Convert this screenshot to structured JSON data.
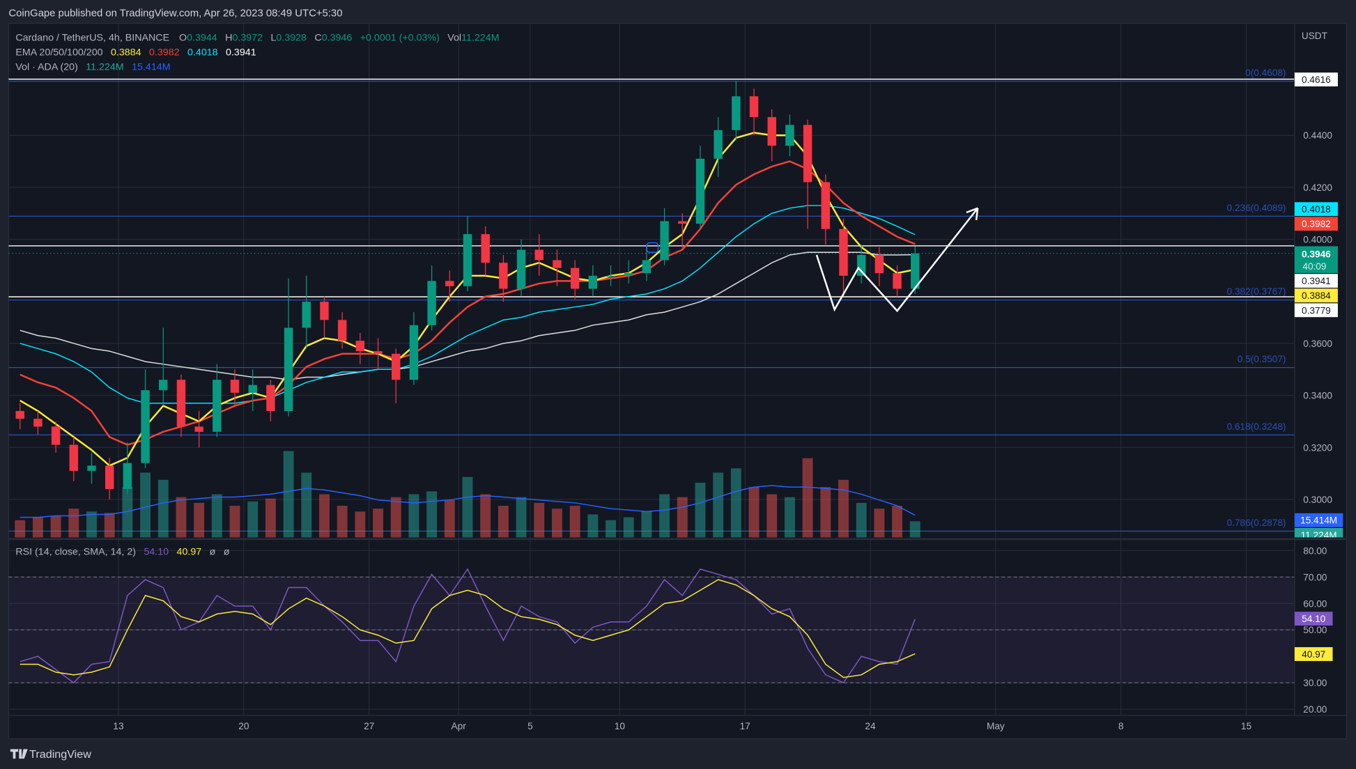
{
  "header": {
    "published": "CoinGape published on TradingView.com, Apr 26, 2023 08:49 UTC+5:30"
  },
  "legend": {
    "symbol": "Cardano / TetherUS, 4h, BINANCE",
    "o_label": "O",
    "o": "0.3944",
    "h_label": "H",
    "h": "0.3972",
    "l_label": "L",
    "l": "0.3928",
    "c_label": "C",
    "c": "0.3946",
    "change": "+0.0001 (+0.03%)",
    "vol_label": "Vol",
    "vol": "11.224M",
    "ema_label": "EMA 20/50/100/200",
    "ema20": "0.3884",
    "ema50": "0.3982",
    "ema100": "0.4018",
    "ema200": "0.3941",
    "vol_ind_label": "Vol · ADA (20)",
    "vol_ind_vol": "11.224M",
    "vol_ind_ma": "15.414M",
    "rsi_label": "RSI (14, close, SMA, 14, 2)",
    "rsi": "54.10",
    "rsi_sma": "40.97",
    "na1": "ø",
    "na2": "ø"
  },
  "price_axis": {
    "currency": "USDT",
    "badges": {
      "high_line": "0.4616",
      "ema100": "0.4018",
      "ema50": "0.3982",
      "last": "0.3946",
      "countdown": "40:09",
      "ema200": "0.3941",
      "ema20": "0.3884",
      "low_line": "0.3779",
      "vol_ma": "15.414M",
      "vol": "11.224M",
      "rsi": "54.10",
      "rsi_sma": "40.97"
    }
  },
  "colors": {
    "up": "#089981",
    "down": "#f23645",
    "ema20": "#ffeb3b",
    "ema50": "#f44336",
    "ema100": "#00e5ff",
    "ema200": "#e0e0e0",
    "fib": "#2c4fb4",
    "vol_ma": "#2962ff",
    "rsi": "#7e57c2",
    "rsi_sma": "#ffeb3b",
    "background": "#131722"
  },
  "branding": {
    "logo": "TradingView"
  },
  "chart_data": {
    "type": "candlestick",
    "title": "Cardano / TetherUS, 4h, BINANCE",
    "ylabel": "USDT",
    "ylim": [
      0.28,
      0.47
    ],
    "grid": true,
    "y_ticks": [
      "0.4400",
      "0.4200",
      "0.4000",
      "0.3600",
      "0.3400",
      "0.3200",
      "0.3000"
    ],
    "x_ticks": [
      {
        "label": "13",
        "date": "2023-03-13"
      },
      {
        "label": "20",
        "date": "2023-03-20"
      },
      {
        "label": "27",
        "date": "2023-03-27"
      },
      {
        "label": "Apr",
        "date": "2023-04-01"
      },
      {
        "label": "5",
        "date": "2023-04-05"
      },
      {
        "label": "10",
        "date": "2023-04-10"
      },
      {
        "label": "17",
        "date": "2023-04-17"
      },
      {
        "label": "24",
        "date": "2023-04-24"
      },
      {
        "label": "May",
        "date": "2023-05-01"
      },
      {
        "label": "8",
        "date": "2023-05-08"
      },
      {
        "label": "15",
        "date": "2023-05-15"
      }
    ],
    "start_date": "2023-03-07",
    "ohlcv_columns": [
      "open",
      "high",
      "low",
      "close",
      "volume_M"
    ],
    "ohlcv": [
      [
        0.334,
        0.337,
        0.327,
        0.331,
        12
      ],
      [
        0.331,
        0.334,
        0.325,
        0.328,
        14
      ],
      [
        0.328,
        0.33,
        0.318,
        0.321,
        15
      ],
      [
        0.321,
        0.324,
        0.307,
        0.311,
        20
      ],
      [
        0.311,
        0.318,
        0.306,
        0.313,
        18
      ],
      [
        0.313,
        0.316,
        0.3,
        0.304,
        17
      ],
      [
        0.304,
        0.322,
        0.302,
        0.314,
        35
      ],
      [
        0.314,
        0.35,
        0.312,
        0.342,
        45
      ],
      [
        0.342,
        0.366,
        0.336,
        0.346,
        40
      ],
      [
        0.346,
        0.348,
        0.324,
        0.328,
        28
      ],
      [
        0.328,
        0.334,
        0.32,
        0.326,
        24
      ],
      [
        0.326,
        0.352,
        0.324,
        0.346,
        30
      ],
      [
        0.346,
        0.35,
        0.336,
        0.341,
        22
      ],
      [
        0.341,
        0.35,
        0.334,
        0.344,
        25
      ],
      [
        0.344,
        0.346,
        0.33,
        0.334,
        27
      ],
      [
        0.334,
        0.385,
        0.332,
        0.366,
        60
      ],
      [
        0.366,
        0.386,
        0.358,
        0.376,
        45
      ],
      [
        0.376,
        0.378,
        0.362,
        0.369,
        30
      ],
      [
        0.369,
        0.372,
        0.358,
        0.361,
        22
      ],
      [
        0.361,
        0.364,
        0.352,
        0.357,
        18
      ],
      [
        0.357,
        0.362,
        0.35,
        0.356,
        20
      ],
      [
        0.356,
        0.358,
        0.337,
        0.346,
        28
      ],
      [
        0.346,
        0.372,
        0.344,
        0.367,
        30
      ],
      [
        0.367,
        0.39,
        0.365,
        0.384,
        32
      ],
      [
        0.384,
        0.388,
        0.376,
        0.382,
        26
      ],
      [
        0.382,
        0.409,
        0.38,
        0.402,
        42
      ],
      [
        0.402,
        0.405,
        0.386,
        0.391,
        30
      ],
      [
        0.391,
        0.394,
        0.376,
        0.381,
        22
      ],
      [
        0.381,
        0.4,
        0.378,
        0.396,
        28
      ],
      [
        0.396,
        0.402,
        0.386,
        0.392,
        24
      ],
      [
        0.392,
        0.396,
        0.382,
        0.389,
        20
      ],
      [
        0.389,
        0.392,
        0.377,
        0.381,
        22
      ],
      [
        0.381,
        0.39,
        0.378,
        0.386,
        16
      ],
      [
        0.386,
        0.39,
        0.382,
        0.386,
        12
      ],
      [
        0.386,
        0.392,
        0.383,
        0.387,
        14
      ],
      [
        0.387,
        0.398,
        0.384,
        0.392,
        18
      ],
      [
        0.392,
        0.412,
        0.39,
        0.407,
        30
      ],
      [
        0.407,
        0.41,
        0.396,
        0.406,
        28
      ],
      [
        0.406,
        0.436,
        0.404,
        0.431,
        38
      ],
      [
        0.431,
        0.447,
        0.424,
        0.442,
        45
      ],
      [
        0.442,
        0.461,
        0.438,
        0.455,
        48
      ],
      [
        0.455,
        0.458,
        0.44,
        0.447,
        35
      ],
      [
        0.447,
        0.45,
        0.43,
        0.436,
        30
      ],
      [
        0.436,
        0.448,
        0.432,
        0.444,
        28
      ],
      [
        0.444,
        0.446,
        0.404,
        0.422,
        55
      ],
      [
        0.422,
        0.425,
        0.398,
        0.404,
        35
      ],
      [
        0.404,
        0.408,
        0.378,
        0.386,
        40
      ],
      [
        0.386,
        0.398,
        0.383,
        0.394,
        24
      ],
      [
        0.394,
        0.397,
        0.382,
        0.387,
        20
      ],
      [
        0.387,
        0.39,
        0.3779,
        0.381,
        22
      ],
      [
        0.381,
        0.3972,
        0.379,
        0.3946,
        11.224
      ]
    ],
    "ema20": [
      0.338,
      0.334,
      0.329,
      0.324,
      0.319,
      0.313,
      0.316,
      0.328,
      0.336,
      0.333,
      0.33,
      0.336,
      0.339,
      0.341,
      0.339,
      0.349,
      0.359,
      0.362,
      0.361,
      0.358,
      0.356,
      0.353,
      0.359,
      0.369,
      0.378,
      0.386,
      0.386,
      0.385,
      0.389,
      0.391,
      0.388,
      0.385,
      0.384,
      0.386,
      0.387,
      0.391,
      0.397,
      0.402,
      0.416,
      0.431,
      0.439,
      0.441,
      0.44,
      0.44,
      0.432,
      0.417,
      0.405,
      0.397,
      0.392,
      0.387,
      0.3884
    ],
    "ema50": [
      0.348,
      0.345,
      0.343,
      0.339,
      0.334,
      0.324,
      0.321,
      0.323,
      0.326,
      0.328,
      0.33,
      0.333,
      0.336,
      0.338,
      0.339,
      0.344,
      0.351,
      0.354,
      0.356,
      0.356,
      0.356,
      0.354,
      0.356,
      0.361,
      0.368,
      0.374,
      0.378,
      0.379,
      0.381,
      0.383,
      0.384,
      0.384,
      0.384,
      0.385,
      0.386,
      0.388,
      0.393,
      0.396,
      0.404,
      0.414,
      0.421,
      0.425,
      0.428,
      0.43,
      0.427,
      0.421,
      0.414,
      0.409,
      0.405,
      0.401,
      0.3982
    ],
    "ema100": [
      0.36,
      0.358,
      0.356,
      0.353,
      0.349,
      0.343,
      0.339,
      0.337,
      0.337,
      0.337,
      0.337,
      0.337,
      0.337,
      0.338,
      0.339,
      0.342,
      0.345,
      0.347,
      0.349,
      0.349,
      0.35,
      0.35,
      0.352,
      0.355,
      0.359,
      0.363,
      0.366,
      0.369,
      0.37,
      0.372,
      0.373,
      0.374,
      0.375,
      0.377,
      0.378,
      0.379,
      0.381,
      0.384,
      0.389,
      0.395,
      0.401,
      0.406,
      0.41,
      0.412,
      0.413,
      0.413,
      0.412,
      0.41,
      0.408,
      0.405,
      0.4018
    ],
    "ema200": [
      0.365,
      0.363,
      0.362,
      0.36,
      0.358,
      0.357,
      0.355,
      0.353,
      0.352,
      0.351,
      0.35,
      0.349,
      0.348,
      0.347,
      0.347,
      0.346,
      0.347,
      0.347,
      0.348,
      0.349,
      0.35,
      0.35,
      0.351,
      0.353,
      0.355,
      0.357,
      0.358,
      0.36,
      0.361,
      0.363,
      0.364,
      0.365,
      0.367,
      0.368,
      0.369,
      0.371,
      0.372,
      0.374,
      0.376,
      0.379,
      0.383,
      0.387,
      0.391,
      0.394,
      0.395,
      0.395,
      0.395,
      0.395,
      0.394,
      0.394,
      0.3941
    ],
    "vol_ma": [
      14,
      14,
      15,
      15,
      16,
      16,
      18,
      21,
      24,
      26,
      27,
      28,
      28,
      29,
      30,
      32,
      34,
      33,
      31,
      29,
      26,
      25,
      24,
      25,
      26,
      28,
      29,
      28,
      27,
      26,
      25,
      24,
      22,
      20,
      19,
      18,
      19,
      21,
      24,
      28,
      32,
      35,
      36,
      35,
      35,
      34,
      33,
      30,
      26,
      22,
      15.414
    ],
    "fib_levels": [
      {
        "label": "0(0.4608)",
        "price": 0.4608
      },
      {
        "label": "0.236(0.4089)",
        "price": 0.4089
      },
      {
        "label": "0.382(0.3767)",
        "price": 0.3767
      },
      {
        "label": "0.5(0.3507)",
        "price": 0.3507
      },
      {
        "label": "0.618(0.3248)",
        "price": 0.3248
      },
      {
        "label": "0.786(0.2878)",
        "price": 0.2878
      }
    ],
    "horizontal_lines": [
      0.4616,
      0.3975,
      0.3779
    ],
    "last_price_line": 0.3946,
    "pattern": {
      "type": "double-bottom W with bullish arrow",
      "points": [
        {
          "date": "2023-04-21T00:00",
          "price": 0.394
        },
        {
          "date": "2023-04-22T00:00",
          "price": 0.373
        },
        {
          "date": "2023-04-23T08:00",
          "price": 0.389
        },
        {
          "date": "2023-04-25T12:00",
          "price": 0.3725
        },
        {
          "date": "2023-04-30T00:00",
          "price": 0.412
        }
      ]
    },
    "rsi": {
      "ylim": [
        15,
        85
      ],
      "y_ticks": [
        "80.00",
        "70.00",
        "60.00",
        "50.00",
        "30.00",
        "20.00"
      ],
      "bands": [
        70,
        50,
        30
      ],
      "rsi": [
        38,
        40,
        35,
        30,
        37,
        38,
        63,
        69,
        66,
        50,
        53,
        63,
        59,
        59,
        50,
        66,
        66,
        59,
        53,
        46,
        46,
        38,
        59,
        71,
        63,
        73,
        59,
        46,
        59,
        55,
        53,
        45,
        51,
        53,
        53,
        59,
        69,
        63,
        73,
        71,
        69,
        63,
        56,
        58,
        43,
        33,
        30,
        40,
        38,
        37,
        54.1
      ],
      "sma": [
        37,
        37,
        34,
        33,
        34,
        36,
        50,
        63,
        61,
        55,
        53,
        56,
        57,
        56,
        52,
        58,
        62,
        59,
        55,
        50,
        48,
        45,
        46,
        58,
        63,
        65,
        63,
        58,
        55,
        54,
        52,
        48,
        46,
        48,
        50,
        55,
        60,
        61,
        65,
        69,
        67,
        63,
        58,
        55,
        48,
        37,
        32,
        33,
        37,
        38,
        40.97
      ]
    }
  }
}
